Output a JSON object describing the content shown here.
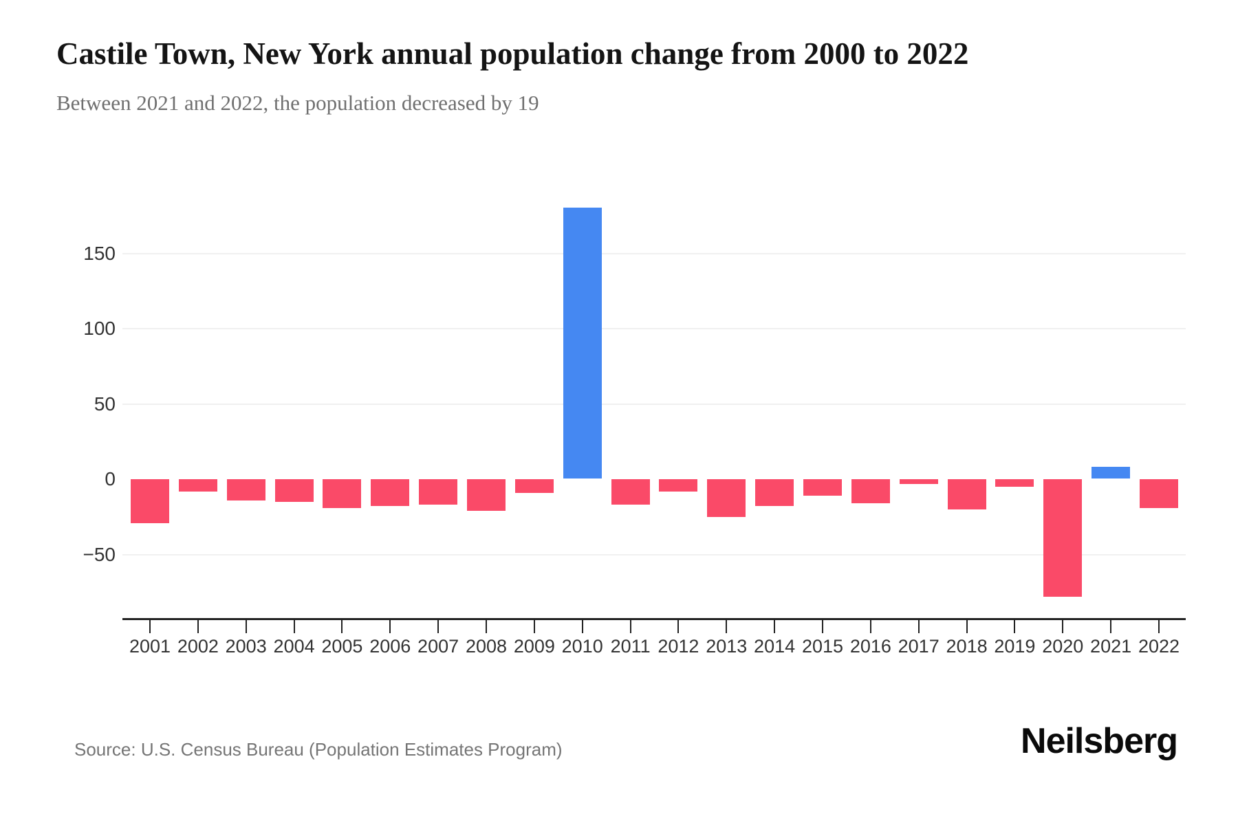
{
  "header": {
    "title": "Castile Town, New York annual population change from 2000 to 2022",
    "subtitle": "Between 2021 and 2022, the population decreased by 19"
  },
  "footer": {
    "source": "Source: U.S. Census Bureau (Population Estimates Program)",
    "brand": "Neilsberg"
  },
  "chart_data": {
    "type": "bar",
    "title": "Castile Town, New York annual population change from 2000 to 2022",
    "subtitle": "Between 2021 and 2022, the population decreased by 19",
    "categories": [
      "2001",
      "2002",
      "2003",
      "2004",
      "2005",
      "2006",
      "2007",
      "2008",
      "2009",
      "2010",
      "2011",
      "2012",
      "2013",
      "2014",
      "2015",
      "2016",
      "2017",
      "2018",
      "2019",
      "2020",
      "2021",
      "2022"
    ],
    "values": [
      -29,
      -8,
      -14,
      -15,
      -19,
      -18,
      -17,
      -21,
      -9,
      180,
      -17,
      -8,
      -25,
      -18,
      -11,
      -16,
      -3,
      -20,
      -5,
      -78,
      8,
      -19
    ],
    "xlabel": "",
    "ylabel": "",
    "ylim": [
      -93,
      181
    ],
    "yticks": [
      150,
      100,
      50,
      0,
      -50
    ],
    "yticklabels": [
      "150",
      "100",
      "50",
      "0",
      "−50"
    ],
    "grid": "horizontal-light",
    "legend": "none",
    "positive_color": "#4588F2",
    "negative_color": "#FA4A68"
  }
}
